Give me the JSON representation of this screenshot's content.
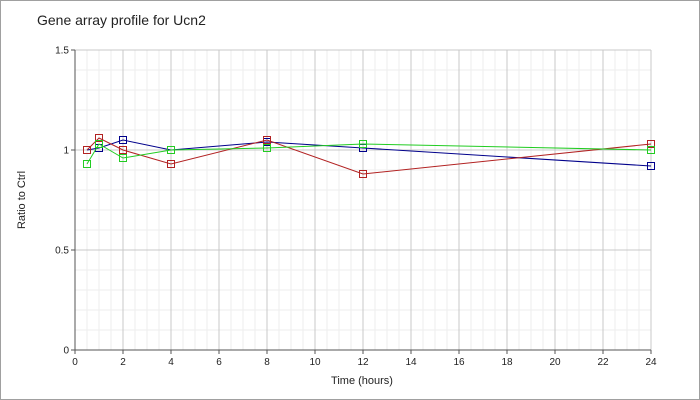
{
  "chart_data": {
    "type": "line",
    "title": "Gene array profile for Ucn2",
    "xlabel": "Time (hours)",
    "ylabel": "Ratio to Ctrl",
    "xlim": [
      0,
      24
    ],
    "ylim": [
      0,
      1.5
    ],
    "x_ticks": [
      0,
      2,
      4,
      6,
      8,
      10,
      12,
      14,
      16,
      18,
      20,
      22,
      24
    ],
    "y_ticks": [
      0,
      0.5,
      1,
      1.5
    ],
    "y_tick_labels": [
      "0",
      "0.5",
      "1",
      "1.5"
    ],
    "grid": true,
    "legend": "none",
    "x": [
      0.5,
      1,
      2,
      4,
      8,
      12,
      24
    ],
    "series": [
      {
        "color": "#00008b",
        "values": [
          1.0,
          1.01,
          1.05,
          1.0,
          1.04,
          1.01,
          0.92
        ]
      },
      {
        "color": "#b22222",
        "values": [
          1.0,
          1.06,
          1.0,
          0.93,
          1.05,
          0.88,
          1.03
        ]
      },
      {
        "color": "#22cc22",
        "values": [
          0.93,
          1.03,
          0.96,
          1.0,
          1.01,
          1.03,
          1.0
        ]
      }
    ]
  }
}
